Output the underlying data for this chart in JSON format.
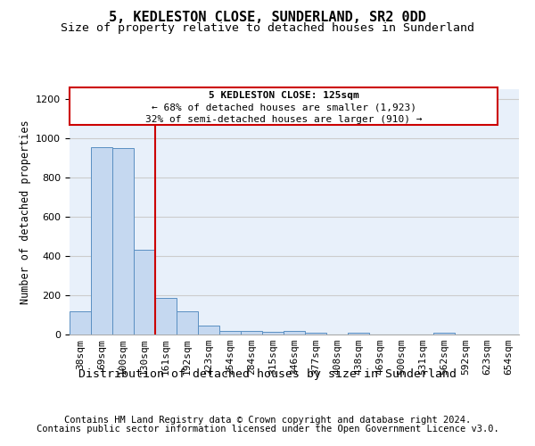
{
  "title": "5, KEDLESTON CLOSE, SUNDERLAND, SR2 0DD",
  "subtitle": "Size of property relative to detached houses in Sunderland",
  "xlabel": "Distribution of detached houses by size in Sunderland",
  "ylabel": "Number of detached properties",
  "categories": [
    "38sqm",
    "69sqm",
    "100sqm",
    "130sqm",
    "161sqm",
    "192sqm",
    "223sqm",
    "254sqm",
    "284sqm",
    "315sqm",
    "346sqm",
    "377sqm",
    "408sqm",
    "438sqm",
    "469sqm",
    "500sqm",
    "531sqm",
    "562sqm",
    "592sqm",
    "623sqm",
    "654sqm"
  ],
  "values": [
    120,
    955,
    948,
    430,
    185,
    120,
    45,
    20,
    20,
    15,
    18,
    10,
    0,
    8,
    0,
    0,
    0,
    8,
    0,
    0,
    0
  ],
  "bar_color": "#c5d8f0",
  "bar_edge_color": "#5a8fc2",
  "annotation_lines": [
    "5 KEDLESTON CLOSE: 125sqm",
    "← 68% of detached houses are smaller (1,923)",
    "32% of semi-detached houses are larger (910) →"
  ],
  "annotation_box_color": "#ffffff",
  "annotation_box_edge": "#cc0000",
  "marker_line_color": "#cc0000",
  "ylim": [
    0,
    1250
  ],
  "yticks": [
    0,
    200,
    400,
    600,
    800,
    1000,
    1200
  ],
  "grid_color": "#cccccc",
  "bg_color": "#e8f0fa",
  "footer_line1": "Contains HM Land Registry data © Crown copyright and database right 2024.",
  "footer_line2": "Contains public sector information licensed under the Open Government Licence v3.0.",
  "title_fontsize": 11,
  "subtitle_fontsize": 9.5,
  "xlabel_fontsize": 9.5,
  "ylabel_fontsize": 8.5,
  "tick_fontsize": 8,
  "annotation_fontsize": 8,
  "footer_fontsize": 7.5
}
